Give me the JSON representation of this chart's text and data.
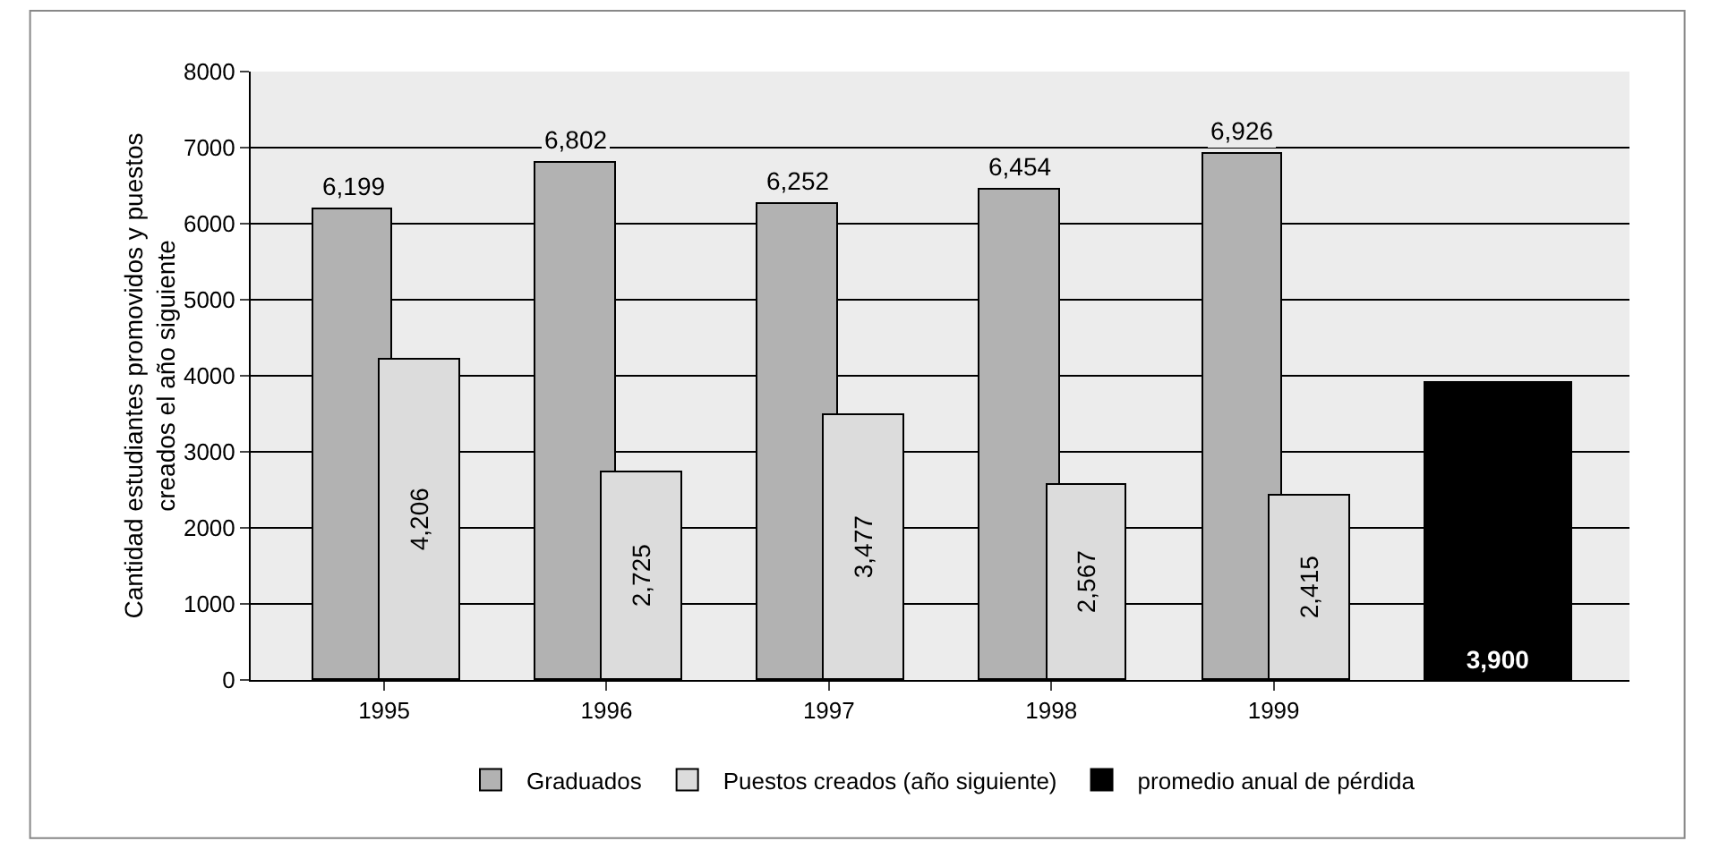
{
  "chart_data": {
    "type": "bar",
    "ylabel": "Cantidad estudiantes promovidos y puestos\ncreados el año siguiente",
    "categories": [
      "1995",
      "1996",
      "1997",
      "1998",
      "1999",
      null
    ],
    "ylim": [
      0,
      8000
    ],
    "yticks": [
      0,
      1000,
      2000,
      3000,
      4000,
      5000,
      6000,
      7000,
      8000
    ],
    "grid": "y",
    "legend": "bottom",
    "series": [
      {
        "name": "Graduados",
        "color": "#b2b2b2",
        "values": [
          6199,
          6802,
          6252,
          6454,
          6926,
          null
        ],
        "value_labels": [
          "6,199",
          "6,802",
          "6,252",
          "6,454",
          "6,926",
          null
        ]
      },
      {
        "name": "Puestos creados (año siguiente)",
        "color": "#dcdcdc",
        "values": [
          4206,
          2725,
          3477,
          2567,
          2415,
          null
        ],
        "value_labels": [
          "4,206",
          "2,725",
          "3,477",
          "2,567",
          "2,415",
          null
        ]
      },
      {
        "name": "promedio anual de pérdida",
        "color": "#000000",
        "values": [
          null,
          null,
          null,
          null,
          null,
          3900
        ],
        "value_labels": [
          null,
          null,
          null,
          null,
          null,
          "3,900"
        ]
      }
    ]
  }
}
